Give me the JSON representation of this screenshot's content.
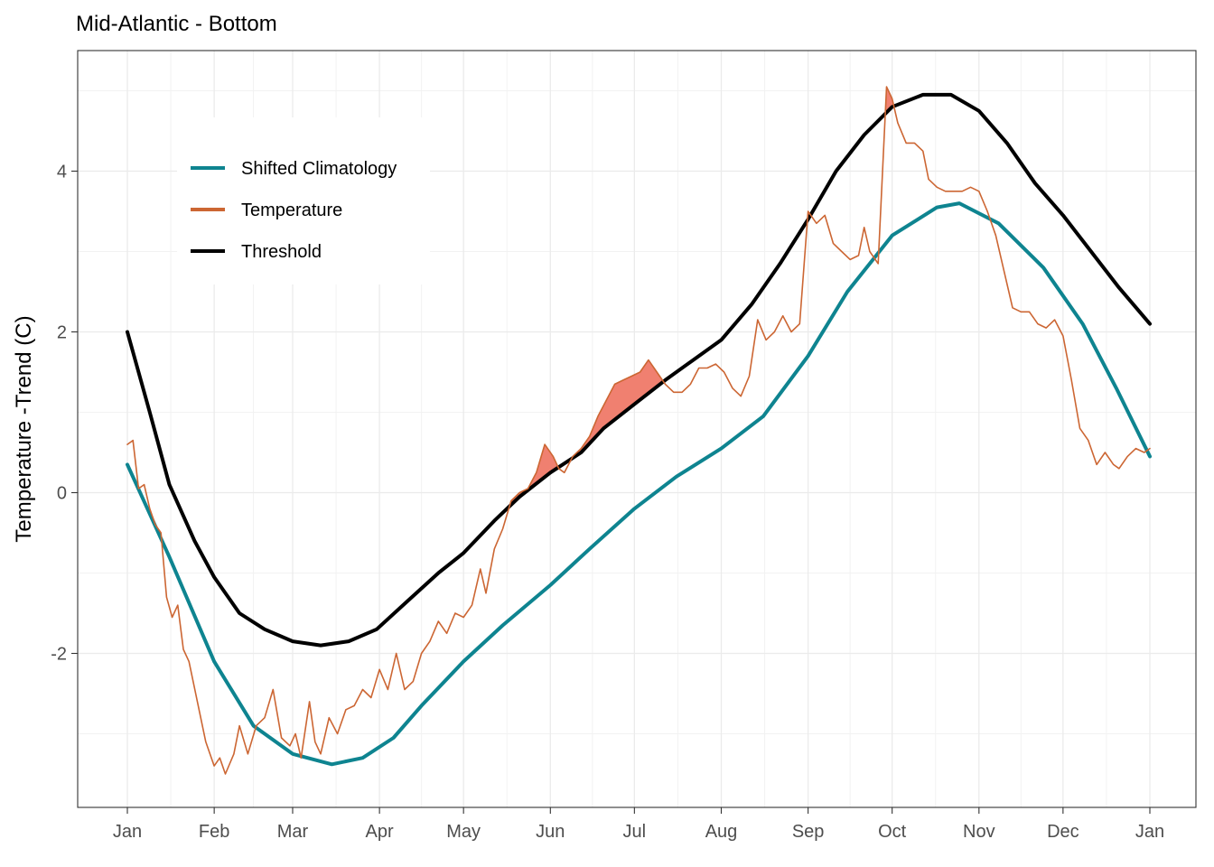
{
  "chart_data": {
    "type": "line",
    "title": "Mid-Atlantic - Bottom",
    "xlabel": "",
    "ylabel": "Temperature -Trend (C)",
    "x_unit": "day_of_year",
    "xlim": [
      1,
      366
    ],
    "ylim": [
      -3.9,
      5.4
    ],
    "x_tick_days": [
      1,
      32,
      60,
      91,
      121,
      152,
      182,
      213,
      244,
      274,
      305,
      335,
      366
    ],
    "x_tick_labels": [
      "Jan",
      "Feb",
      "Mar",
      "Apr",
      "May",
      "Jun",
      "Jul",
      "Aug",
      "Sep",
      "Oct",
      "Nov",
      "Dec",
      "Jan"
    ],
    "y_ticks": [
      -2,
      0,
      2,
      4
    ],
    "y_tick_labels": [
      "-2",
      "0",
      "2",
      "4"
    ],
    "grid": true,
    "legend_position": "top-left",
    "colors": {
      "climatology": "#0e8490",
      "temperature": "#cc6633",
      "threshold": "#000000",
      "event_fill": "#f08070"
    },
    "series": [
      {
        "name": "Shifted Climatology",
        "key": "climatology",
        "points": [
          [
            1,
            0.35
          ],
          [
            16,
            -0.8
          ],
          [
            32,
            -2.1
          ],
          [
            46,
            -2.9
          ],
          [
            60,
            -3.25
          ],
          [
            74,
            -3.38
          ],
          [
            85,
            -3.3
          ],
          [
            96,
            -3.05
          ],
          [
            106,
            -2.65
          ],
          [
            121,
            -2.1
          ],
          [
            135,
            -1.65
          ],
          [
            152,
            -1.15
          ],
          [
            166,
            -0.7
          ],
          [
            182,
            -0.2
          ],
          [
            197,
            0.2
          ],
          [
            213,
            0.55
          ],
          [
            228,
            0.95
          ],
          [
            244,
            1.7
          ],
          [
            258,
            2.5
          ],
          [
            274,
            3.2
          ],
          [
            290,
            3.55
          ],
          [
            298,
            3.6
          ],
          [
            312,
            3.35
          ],
          [
            328,
            2.8
          ],
          [
            342,
            2.1
          ],
          [
            354,
            1.3
          ],
          [
            366,
            0.45
          ]
        ]
      },
      {
        "name": "Temperature",
        "key": "temperature",
        "points": [
          [
            1,
            0.6
          ],
          [
            3,
            0.65
          ],
          [
            5,
            0.05
          ],
          [
            7,
            0.1
          ],
          [
            9,
            -0.2
          ],
          [
            11,
            -0.4
          ],
          [
            13,
            -0.5
          ],
          [
            15,
            -1.3
          ],
          [
            17,
            -1.55
          ],
          [
            19,
            -1.4
          ],
          [
            21,
            -1.95
          ],
          [
            23,
            -2.1
          ],
          [
            26,
            -2.6
          ],
          [
            29,
            -3.1
          ],
          [
            32,
            -3.4
          ],
          [
            34,
            -3.3
          ],
          [
            36,
            -3.5
          ],
          [
            39,
            -3.25
          ],
          [
            41,
            -2.9
          ],
          [
            44,
            -3.25
          ],
          [
            47,
            -2.9
          ],
          [
            50,
            -2.8
          ],
          [
            53,
            -2.45
          ],
          [
            56,
            -3.05
          ],
          [
            59,
            -3.15
          ],
          [
            61,
            -3.0
          ],
          [
            63,
            -3.3
          ],
          [
            66,
            -2.6
          ],
          [
            68,
            -3.1
          ],
          [
            70,
            -3.25
          ],
          [
            73,
            -2.8
          ],
          [
            76,
            -3.0
          ],
          [
            79,
            -2.7
          ],
          [
            82,
            -2.65
          ],
          [
            85,
            -2.45
          ],
          [
            88,
            -2.55
          ],
          [
            91,
            -2.2
          ],
          [
            94,
            -2.45
          ],
          [
            97,
            -2.0
          ],
          [
            100,
            -2.45
          ],
          [
            103,
            -2.35
          ],
          [
            106,
            -2.0
          ],
          [
            109,
            -1.85
          ],
          [
            112,
            -1.6
          ],
          [
            115,
            -1.75
          ],
          [
            118,
            -1.5
          ],
          [
            121,
            -1.55
          ],
          [
            124,
            -1.4
          ],
          [
            127,
            -0.95
          ],
          [
            129,
            -1.25
          ],
          [
            132,
            -0.7
          ],
          [
            135,
            -0.45
          ],
          [
            138,
            -0.1
          ],
          [
            141,
            0.0
          ],
          [
            144,
            0.05
          ],
          [
            147,
            0.25
          ],
          [
            150,
            0.6
          ],
          [
            153,
            0.45
          ],
          [
            155,
            0.3
          ],
          [
            157,
            0.25
          ],
          [
            160,
            0.45
          ],
          [
            163,
            0.55
          ],
          [
            166,
            0.7
          ],
          [
            169,
            0.95
          ],
          [
            172,
            1.15
          ],
          [
            175,
            1.35
          ],
          [
            178,
            1.4
          ],
          [
            181,
            1.45
          ],
          [
            184,
            1.5
          ],
          [
            187,
            1.65
          ],
          [
            190,
            1.5
          ],
          [
            193,
            1.35
          ],
          [
            196,
            1.25
          ],
          [
            199,
            1.25
          ],
          [
            202,
            1.35
          ],
          [
            205,
            1.55
          ],
          [
            208,
            1.55
          ],
          [
            211,
            1.6
          ],
          [
            214,
            1.5
          ],
          [
            217,
            1.3
          ],
          [
            220,
            1.2
          ],
          [
            223,
            1.45
          ],
          [
            226,
            2.15
          ],
          [
            229,
            1.9
          ],
          [
            232,
            2.0
          ],
          [
            235,
            2.2
          ],
          [
            238,
            2.0
          ],
          [
            241,
            2.1
          ],
          [
            244,
            3.5
          ],
          [
            247,
            3.35
          ],
          [
            250,
            3.45
          ],
          [
            253,
            3.1
          ],
          [
            256,
            3.0
          ],
          [
            259,
            2.9
          ],
          [
            262,
            2.95
          ],
          [
            264,
            3.3
          ],
          [
            266,
            3.0
          ],
          [
            269,
            2.85
          ],
          [
            272,
            5.05
          ],
          [
            274,
            4.9
          ],
          [
            276,
            4.6
          ],
          [
            279,
            4.35
          ],
          [
            282,
            4.35
          ],
          [
            285,
            4.25
          ],
          [
            287,
            3.9
          ],
          [
            290,
            3.8
          ],
          [
            293,
            3.75
          ],
          [
            296,
            3.75
          ],
          [
            299,
            3.75
          ],
          [
            302,
            3.8
          ],
          [
            305,
            3.75
          ],
          [
            308,
            3.5
          ],
          [
            311,
            3.2
          ],
          [
            314,
            2.75
          ],
          [
            317,
            2.3
          ],
          [
            320,
            2.25
          ],
          [
            323,
            2.25
          ],
          [
            326,
            2.1
          ],
          [
            329,
            2.05
          ],
          [
            332,
            2.15
          ],
          [
            335,
            1.95
          ],
          [
            338,
            1.4
          ],
          [
            341,
            0.8
          ],
          [
            344,
            0.65
          ],
          [
            347,
            0.35
          ],
          [
            350,
            0.5
          ],
          [
            353,
            0.35
          ],
          [
            355,
            0.3
          ],
          [
            358,
            0.45
          ],
          [
            361,
            0.55
          ],
          [
            364,
            0.5
          ],
          [
            366,
            0.55
          ]
        ]
      },
      {
        "name": "Threshold",
        "key": "threshold",
        "points": [
          [
            1,
            2.0
          ],
          [
            9,
            1.0
          ],
          [
            16,
            0.1
          ],
          [
            25,
            -0.6
          ],
          [
            32,
            -1.05
          ],
          [
            41,
            -1.5
          ],
          [
            50,
            -1.7
          ],
          [
            60,
            -1.85
          ],
          [
            70,
            -1.9
          ],
          [
            80,
            -1.85
          ],
          [
            90,
            -1.7
          ],
          [
            101,
            -1.35
          ],
          [
            112,
            -1.0
          ],
          [
            121,
            -0.75
          ],
          [
            132,
            -0.35
          ],
          [
            141,
            -0.05
          ],
          [
            152,
            0.25
          ],
          [
            163,
            0.5
          ],
          [
            171,
            0.8
          ],
          [
            182,
            1.1
          ],
          [
            193,
            1.4
          ],
          [
            203,
            1.65
          ],
          [
            213,
            1.9
          ],
          [
            224,
            2.35
          ],
          [
            234,
            2.85
          ],
          [
            244,
            3.4
          ],
          [
            254,
            4.0
          ],
          [
            264,
            4.45
          ],
          [
            274,
            4.8
          ],
          [
            285,
            4.95
          ],
          [
            295,
            4.95
          ],
          [
            305,
            4.75
          ],
          [
            315,
            4.35
          ],
          [
            325,
            3.85
          ],
          [
            335,
            3.45
          ],
          [
            345,
            3.0
          ],
          [
            355,
            2.55
          ],
          [
            366,
            2.1
          ]
        ]
      }
    ]
  }
}
